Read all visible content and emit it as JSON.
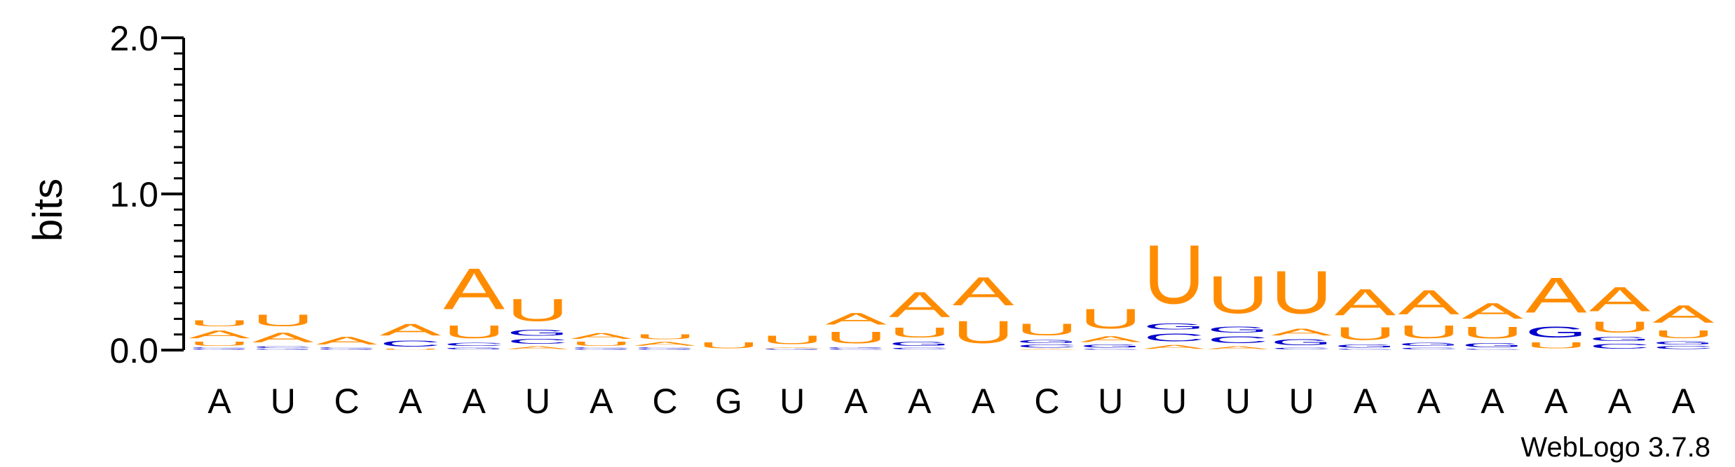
{
  "chart_data": {
    "type": "sequence-logo",
    "ylabel": "bits",
    "ylim": [
      0,
      2.0
    ],
    "yticks": [
      "0.0",
      "1.0",
      "2.0"
    ],
    "footer": "WebLogo 3.7.8",
    "colors": {
      "A": "#ff8c00",
      "U": "#ff8c00",
      "C": "#0000cc",
      "G": "#0000cc"
    },
    "positions": [
      {
        "label": "A",
        "stack": [
          [
            "G",
            0.01
          ],
          [
            "C",
            0.01
          ],
          [
            "U",
            0.04
          ],
          [
            "A",
            0.08
          ],
          [
            "U",
            0.06
          ]
        ]
      },
      {
        "label": "U",
        "stack": [
          [
            "G",
            0.01
          ],
          [
            "C",
            0.02
          ],
          [
            "A",
            0.1
          ],
          [
            "U",
            0.12
          ]
        ]
      },
      {
        "label": "C",
        "stack": [
          [
            "G",
            0.01
          ],
          [
            "C",
            0.01
          ],
          [
            "A",
            0.08
          ]
        ]
      },
      {
        "label": "A",
        "stack": [
          [
            "U",
            0.01
          ],
          [
            "C",
            0.06
          ],
          [
            "A",
            0.12
          ]
        ]
      },
      {
        "label": "A",
        "stack": [
          [
            "G",
            0.02
          ],
          [
            "C",
            0.03
          ],
          [
            "U",
            0.13
          ],
          [
            "A",
            0.42
          ]
        ]
      },
      {
        "label": "U",
        "stack": [
          [
            "A",
            0.03
          ],
          [
            "C",
            0.05
          ],
          [
            "G",
            0.06
          ],
          [
            "U",
            0.23
          ]
        ]
      },
      {
        "label": "A",
        "stack": [
          [
            "G",
            0.01
          ],
          [
            "C",
            0.01
          ],
          [
            "U",
            0.04
          ],
          [
            "A",
            0.06
          ]
        ]
      },
      {
        "label": "C",
        "stack": [
          [
            "G",
            0.01
          ],
          [
            "C",
            0.01
          ],
          [
            "A",
            0.04
          ],
          [
            "U",
            0.05
          ]
        ]
      },
      {
        "label": "G",
        "stack": [
          [
            "U",
            0.06
          ]
        ]
      },
      {
        "label": "U",
        "stack": [
          [
            "G",
            0.01
          ],
          [
            "A",
            0.01
          ],
          [
            "U",
            0.09
          ]
        ]
      },
      {
        "label": "A",
        "stack": [
          [
            "C",
            0.01
          ],
          [
            "G",
            0.01
          ],
          [
            "U",
            0.12
          ],
          [
            "A",
            0.12
          ]
        ]
      },
      {
        "label": "A",
        "stack": [
          [
            "C",
            0.02
          ],
          [
            "G",
            0.04
          ],
          [
            "U",
            0.1
          ],
          [
            "A",
            0.26
          ]
        ]
      },
      {
        "label": "A",
        "stack": [
          [
            "U",
            0.23
          ],
          [
            "A",
            0.29
          ]
        ]
      },
      {
        "label": "C",
        "stack": [
          [
            "A",
            0.01
          ],
          [
            "C",
            0.03
          ],
          [
            "G",
            0.03
          ],
          [
            "U",
            0.12
          ]
        ]
      },
      {
        "label": "U",
        "stack": [
          [
            "C",
            0.01
          ],
          [
            "G",
            0.03
          ],
          [
            "A",
            0.06
          ],
          [
            "U",
            0.2
          ]
        ]
      },
      {
        "label": "U",
        "stack": [
          [
            "A",
            0.04
          ],
          [
            "C",
            0.08
          ],
          [
            "G",
            0.06
          ],
          [
            "U",
            0.6
          ]
        ]
      },
      {
        "label": "U",
        "stack": [
          [
            "A",
            0.03
          ],
          [
            "C",
            0.07
          ],
          [
            "G",
            0.06
          ],
          [
            "U",
            0.38
          ]
        ]
      },
      {
        "label": "U",
        "stack": [
          [
            "C",
            0.02
          ],
          [
            "G",
            0.06
          ],
          [
            "A",
            0.07
          ],
          [
            "U",
            0.44
          ]
        ]
      },
      {
        "label": "A",
        "stack": [
          [
            "C",
            0.01
          ],
          [
            "G",
            0.03
          ],
          [
            "U",
            0.13
          ],
          [
            "A",
            0.27
          ]
        ]
      },
      {
        "label": "A",
        "stack": [
          [
            "C",
            0.02
          ],
          [
            "G",
            0.03
          ],
          [
            "U",
            0.13
          ],
          [
            "A",
            0.25
          ]
        ]
      },
      {
        "label": "A",
        "stack": [
          [
            "C",
            0.01
          ],
          [
            "G",
            0.04
          ],
          [
            "U",
            0.12
          ],
          [
            "A",
            0.16
          ]
        ]
      },
      {
        "label": "A",
        "stack": [
          [
            "U",
            0.06
          ],
          [
            "G",
            0.11
          ],
          [
            "A",
            0.36
          ]
        ]
      },
      {
        "label": "A",
        "stack": [
          [
            "C",
            0.05
          ],
          [
            "G",
            0.04
          ],
          [
            "U",
            0.11
          ],
          [
            "A",
            0.25
          ]
        ]
      },
      {
        "label": "A",
        "stack": [
          [
            "C",
            0.03
          ],
          [
            "G",
            0.03
          ],
          [
            "U",
            0.08
          ],
          [
            "A",
            0.18
          ]
        ]
      }
    ]
  }
}
